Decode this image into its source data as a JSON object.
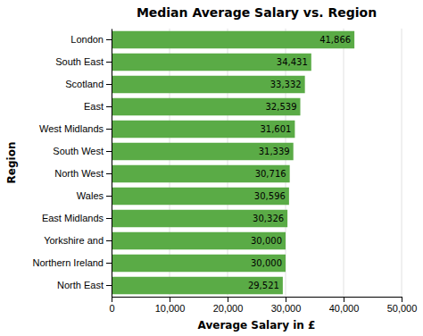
{
  "chart_data": {
    "type": "bar",
    "orientation": "horizontal",
    "title": "Median Average Salary vs. Region",
    "xlabel": "Average Salary in £",
    "ylabel": "Region",
    "categories": [
      "North East",
      "Northern Ireland",
      "Yorkshire and",
      "East Midlands",
      "Wales",
      "North West",
      "South West",
      "West Midlands",
      "East",
      "Scotland",
      "South East",
      "London"
    ],
    "values": [
      29521,
      30000,
      30000,
      30326,
      30596,
      30716,
      31339,
      31601,
      32539,
      33332,
      34431,
      41866
    ],
    "value_labels": [
      "29,521",
      "30,000",
      "30,000",
      "30,326",
      "30,596",
      "30,716",
      "31,339",
      "31,601",
      "32,539",
      "33,332",
      "34,431",
      "41,866"
    ],
    "color": "#5aab46",
    "xlim": [
      0,
      50000
    ],
    "xticks": [
      0,
      {
        "value": 10000,
        "label": "10,000"
      },
      {
        "value": 20000,
        "label": "20,000"
      },
      {
        "value": 30000,
        "label": "30,000"
      },
      {
        "value": 40000,
        "label": "40,000"
      },
      {
        "value": 50000,
        "label": "50,000"
      }
    ],
    "grid": true,
    "data_labels": true
  }
}
